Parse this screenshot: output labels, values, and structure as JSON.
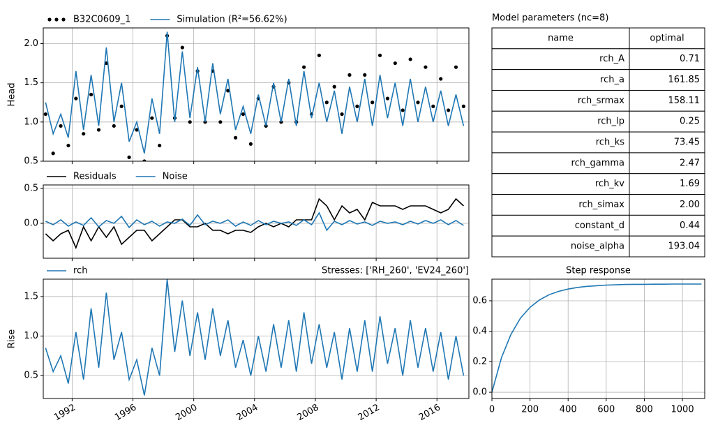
{
  "chart_data": [
    {
      "type": "line",
      "ylabel": "Head",
      "ylim": [
        0.5,
        2.2
      ],
      "yticks": [
        {
          "value": 0.5,
          "label": "0.5"
        },
        {
          "value": 1.0,
          "label": "1.0"
        },
        {
          "value": 1.5,
          "label": "1.5"
        },
        {
          "value": 2.0,
          "label": "2.0"
        }
      ],
      "grid": true,
      "x": [
        1990.25,
        1990.75,
        1991.25,
        1991.75,
        1992.25,
        1992.75,
        1993.25,
        1993.75,
        1994.25,
        1994.75,
        1995.25,
        1995.75,
        1996.25,
        1996.75,
        1997.25,
        1997.75,
        1998.25,
        1998.75,
        1999.25,
        1999.75,
        2000.25,
        2000.75,
        2001.25,
        2001.75,
        2002.25,
        2002.75,
        2003.25,
        2003.75,
        2004.25,
        2004.75,
        2005.25,
        2005.75,
        2006.25,
        2006.75,
        2007.25,
        2007.75,
        2008.25,
        2008.75,
        2009.25,
        2009.75,
        2010.25,
        2010.75,
        2011.25,
        2011.75,
        2012.25,
        2012.75,
        2013.25,
        2013.75,
        2014.25,
        2014.75,
        2015.25,
        2015.75,
        2016.25,
        2016.75,
        2017.25,
        2017.75
      ],
      "series": [
        {
          "name": "B32C0609_1",
          "color": "#000000",
          "marker": "dot",
          "values": [
            1.1,
            0.6,
            0.95,
            0.7,
            1.3,
            0.85,
            1.35,
            0.9,
            1.75,
            0.95,
            1.2,
            0.55,
            0.9,
            0.5,
            1.05,
            0.7,
            2.1,
            1.05,
            1.95,
            1.0,
            1.65,
            1.0,
            1.65,
            1.0,
            1.4,
            0.8,
            1.1,
            0.72,
            1.3,
            0.95,
            1.45,
            1.0,
            1.5,
            1.0,
            1.7,
            1.1,
            1.85,
            1.25,
            1.45,
            1.1,
            1.6,
            1.2,
            1.6,
            1.25,
            1.85,
            1.3,
            1.75,
            1.15,
            1.8,
            1.25,
            1.7,
            1.2,
            1.55,
            1.15,
            1.7,
            1.2
          ]
        },
        {
          "name": "Simulation (R²=56.62%)",
          "color": "#1f77b4",
          "values": [
            1.25,
            0.85,
            1.1,
            0.8,
            1.65,
            0.9,
            1.6,
            0.95,
            1.95,
            1.0,
            1.5,
            0.75,
            1.0,
            0.6,
            1.3,
            0.85,
            2.15,
            1.0,
            1.9,
            1.05,
            1.7,
            1.0,
            1.75,
            1.1,
            1.55,
            0.9,
            1.2,
            0.85,
            1.35,
            0.95,
            1.5,
            1.0,
            1.55,
            0.95,
            1.65,
            1.05,
            1.5,
            1.0,
            1.4,
            0.85,
            1.45,
            1.0,
            1.55,
            0.95,
            1.6,
            1.05,
            1.5,
            0.95,
            1.55,
            1.0,
            1.45,
            1.0,
            1.4,
            0.95,
            1.35,
            0.95
          ]
        }
      ]
    },
    {
      "type": "line",
      "ylim": [
        -0.5,
        0.55
      ],
      "yticks": [
        {
          "value": 0.0,
          "label": "0.0"
        },
        {
          "value": 0.5,
          "label": "0.5"
        }
      ],
      "grid": true,
      "x": [
        1990.25,
        1990.75,
        1991.25,
        1991.75,
        1992.25,
        1992.75,
        1993.25,
        1993.75,
        1994.25,
        1994.75,
        1995.25,
        1995.75,
        1996.25,
        1996.75,
        1997.25,
        1997.75,
        1998.25,
        1998.75,
        1999.25,
        1999.75,
        2000.25,
        2000.75,
        2001.25,
        2001.75,
        2002.25,
        2002.75,
        2003.25,
        2003.75,
        2004.25,
        2004.75,
        2005.25,
        2005.75,
        2006.25,
        2006.75,
        2007.25,
        2007.75,
        2008.25,
        2008.75,
        2009.25,
        2009.75,
        2010.25,
        2010.75,
        2011.25,
        2011.75,
        2012.25,
        2012.75,
        2013.25,
        2013.75,
        2014.25,
        2014.75,
        2015.25,
        2015.75,
        2016.25,
        2016.75,
        2017.25,
        2017.75
      ],
      "series": [
        {
          "name": "Residuals",
          "color": "#000000",
          "values": [
            -0.15,
            -0.25,
            -0.15,
            -0.1,
            -0.35,
            -0.05,
            -0.25,
            -0.05,
            -0.2,
            -0.05,
            -0.3,
            -0.2,
            -0.1,
            -0.1,
            -0.25,
            -0.15,
            -0.05,
            0.05,
            0.05,
            -0.05,
            -0.05,
            0,
            -0.1,
            -0.1,
            -0.15,
            -0.1,
            -0.1,
            -0.13,
            -0.05,
            0,
            -0.05,
            0,
            -0.05,
            0.05,
            0.05,
            0.05,
            0.35,
            0.25,
            0.05,
            0.25,
            0.15,
            0.2,
            0.05,
            0.3,
            0.25,
            0.25,
            0.25,
            0.2,
            0.25,
            0.25,
            0.25,
            0.2,
            0.15,
            0.2,
            0.35,
            0.25
          ]
        },
        {
          "name": "Noise",
          "color": "#1f77b4",
          "values": [
            0.03,
            -0.02,
            0.05,
            -0.04,
            0.02,
            -0.03,
            0.08,
            -0.05,
            0.04,
            0.0,
            0.1,
            -0.06,
            0.05,
            -0.02,
            0.03,
            -0.04,
            0.02,
            0.0,
            0.06,
            -0.03,
            0.12,
            -0.02,
            0.03,
            0.0,
            0.05,
            -0.04,
            0.02,
            -0.03,
            0.04,
            -0.02,
            0.03,
            0.0,
            0.02,
            -0.03,
            0.05,
            -0.02,
            0.15,
            -0.1,
            0.03,
            -0.02,
            0.04,
            -0.01,
            0.02,
            -0.03,
            0.03,
            0.0,
            0.02,
            -0.02,
            0.03,
            -0.01,
            0.04,
            0.0,
            0.05,
            -0.02,
            0.04,
            -0.03
          ]
        }
      ]
    },
    {
      "type": "line",
      "ylabel": "Rise",
      "title": "Stresses: ['RH_260', 'EV24_260']",
      "ylim": [
        0.21,
        1.72
      ],
      "yticks": [
        {
          "value": 0.5,
          "label": "0.5"
        },
        {
          "value": 1.0,
          "label": "1.0"
        },
        {
          "value": 1.5,
          "label": "1.5"
        }
      ],
      "grid": true,
      "xlim": [
        1990.1,
        2018.1
      ],
      "xticks": [
        1992,
        1996,
        2000,
        2004,
        2008,
        2012,
        2016
      ],
      "xtick_rotation": 30,
      "x": [
        1990.25,
        1990.75,
        1991.25,
        1991.75,
        1992.25,
        1992.75,
        1993.25,
        1993.75,
        1994.25,
        1994.75,
        1995.25,
        1995.75,
        1996.25,
        1996.75,
        1997.25,
        1997.75,
        1998.25,
        1998.75,
        1999.25,
        1999.75,
        2000.25,
        2000.75,
        2001.25,
        2001.75,
        2002.25,
        2002.75,
        2003.25,
        2003.75,
        2004.25,
        2004.75,
        2005.25,
        2005.75,
        2006.25,
        2006.75,
        2007.25,
        2007.75,
        2008.25,
        2008.75,
        2009.25,
        2009.75,
        2010.25,
        2010.75,
        2011.25,
        2011.75,
        2012.25,
        2012.75,
        2013.25,
        2013.75,
        2014.25,
        2014.75,
        2015.25,
        2015.75,
        2016.25,
        2016.75,
        2017.25,
        2017.75
      ],
      "series": [
        {
          "name": "rch",
          "color": "#1f77b4",
          "values": [
            0.85,
            0.55,
            0.75,
            0.4,
            1.05,
            0.45,
            1.35,
            0.6,
            1.55,
            0.7,
            1.05,
            0.45,
            0.7,
            0.25,
            0.85,
            0.5,
            1.72,
            0.8,
            1.45,
            0.75,
            1.3,
            0.7,
            1.35,
            0.75,
            1.2,
            0.6,
            0.95,
            0.5,
            1.0,
            0.55,
            1.15,
            0.6,
            1.2,
            0.55,
            1.3,
            0.65,
            1.15,
            0.6,
            1.05,
            0.45,
            1.1,
            0.55,
            1.2,
            0.55,
            1.25,
            0.65,
            1.1,
            0.5,
            1.2,
            0.6,
            1.1,
            0.55,
            1.05,
            0.45,
            1.0,
            0.5
          ]
        }
      ]
    },
    {
      "type": "line",
      "title": "Step response",
      "xlim": [
        0,
        1117
      ],
      "xticks": [
        0,
        200,
        400,
        600,
        800,
        1000
      ],
      "ylim": [
        -0.041,
        0.742
      ],
      "yticks": [
        {
          "value": 0.0,
          "label": "0.0"
        },
        {
          "value": 0.2,
          "label": "0.2"
        },
        {
          "value": 0.4,
          "label": "0.4"
        },
        {
          "value": 0.6,
          "label": "0.6"
        }
      ],
      "grid": true,
      "x": [
        0,
        50,
        100,
        150,
        200,
        250,
        300,
        350,
        400,
        450,
        500,
        550,
        600,
        650,
        700,
        750,
        800,
        850,
        900,
        950,
        1000,
        1050,
        1100
      ],
      "series": [
        {
          "color": "#1f77b4",
          "values": [
            0,
            0.227,
            0.38,
            0.487,
            0.557,
            0.606,
            0.64,
            0.662,
            0.677,
            0.688,
            0.695,
            0.699,
            0.703,
            0.705,
            0.707,
            0.708,
            0.708,
            0.709,
            0.709,
            0.71,
            0.71,
            0.71,
            0.71
          ]
        }
      ]
    }
  ],
  "table": {
    "title": "Model parameters (nc=8)",
    "columns": [
      "name",
      "optimal"
    ],
    "rows": [
      [
        "rch_A",
        "0.71"
      ],
      [
        "rch_a",
        "161.85"
      ],
      [
        "rch_srmax",
        "158.11"
      ],
      [
        "rch_lp",
        "0.25"
      ],
      [
        "rch_ks",
        "73.45"
      ],
      [
        "rch_gamma",
        "2.47"
      ],
      [
        "rch_kv",
        "1.69"
      ],
      [
        "rch_simax",
        "2.00"
      ],
      [
        "constant_d",
        "0.44"
      ],
      [
        "noise_alpha",
        "193.04"
      ]
    ]
  }
}
